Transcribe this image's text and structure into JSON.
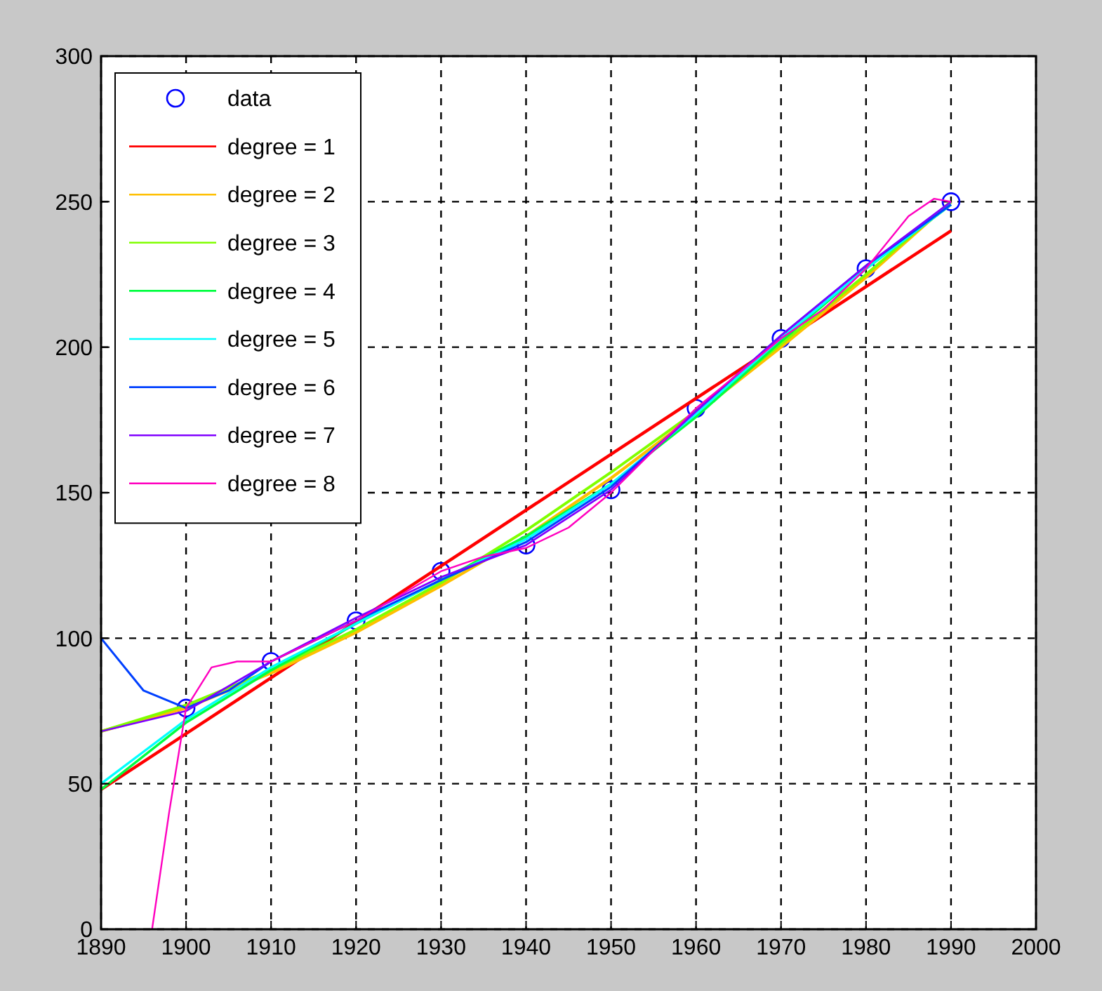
{
  "chart_data": {
    "type": "line",
    "xlim": [
      1890,
      2000
    ],
    "ylim": [
      0,
      300
    ],
    "xticks": [
      1890,
      1900,
      1910,
      1920,
      1930,
      1940,
      1950,
      1960,
      1970,
      1980,
      1990,
      2000
    ],
    "yticks": [
      0,
      50,
      100,
      150,
      200,
      250,
      300
    ],
    "grid": true,
    "legend": "top left",
    "series": [
      {
        "name": "data",
        "type": "scatter",
        "marker": "circle",
        "color": "#0000ff",
        "x": [
          1900,
          1910,
          1920,
          1930,
          1940,
          1950,
          1960,
          1970,
          1980,
          1990
        ],
        "values": [
          76,
          92,
          106,
          123,
          132,
          151,
          179,
          203,
          227,
          250
        ]
      },
      {
        "name": "degree = 1",
        "color": "#ff0000",
        "x": [
          1890,
          1990
        ],
        "values": [
          48,
          240
        ]
      },
      {
        "name": "degree = 2",
        "color": "#ffbf00",
        "x": [
          1890,
          1900,
          1910,
          1920,
          1930,
          1940,
          1950,
          1960,
          1970,
          1980,
          1990
        ],
        "values": [
          68,
          76,
          88,
          102,
          118,
          135,
          155,
          177,
          200,
          224,
          250
        ]
      },
      {
        "name": "degree = 3",
        "color": "#80ff00",
        "x": [
          1890,
          1900,
          1910,
          1920,
          1930,
          1940,
          1950,
          1960,
          1970,
          1980,
          1990
        ],
        "values": [
          68,
          77,
          89,
          103,
          119,
          137,
          157,
          178,
          201,
          225,
          250
        ]
      },
      {
        "name": "degree = 4",
        "color": "#00ff40",
        "x": [
          1890,
          1900,
          1910,
          1920,
          1930,
          1940,
          1950,
          1960,
          1970,
          1980,
          1990
        ],
        "values": [
          48,
          71,
          89,
          105,
          120,
          135,
          153,
          176,
          202,
          227,
          249
        ]
      },
      {
        "name": "degree = 5",
        "color": "#00ffff",
        "x": [
          1890,
          1900,
          1910,
          1920,
          1930,
          1940,
          1950,
          1960,
          1970,
          1980,
          1990
        ],
        "values": [
          50,
          72,
          90,
          105,
          120,
          134,
          153,
          177,
          203,
          227,
          249
        ]
      },
      {
        "name": "degree = 6",
        "color": "#0040ff",
        "x": [
          1890,
          1895,
          1900,
          1905,
          1910,
          1920,
          1930,
          1940,
          1950,
          1960,
          1970,
          1980,
          1990
        ],
        "values": [
          100,
          82,
          76,
          82,
          92,
          106,
          120,
          133,
          152,
          178,
          204,
          228,
          249
        ]
      },
      {
        "name": "degree = 7",
        "color": "#8000ff",
        "x": [
          1890,
          1900,
          1910,
          1920,
          1930,
          1940,
          1950,
          1960,
          1970,
          1980,
          1990
        ],
        "values": [
          68,
          75,
          92,
          107,
          121,
          132,
          151,
          178,
          204,
          228,
          250
        ]
      },
      {
        "name": "degree = 8",
        "color": "#ff00bf",
        "x": [
          1896,
          1898,
          1900,
          1903,
          1906,
          1910,
          1915,
          1920,
          1930,
          1935,
          1940,
          1945,
          1950,
          1960,
          1970,
          1975,
          1980,
          1985,
          1988,
          1990
        ],
        "values": [
          0,
          40,
          76,
          90,
          92,
          92,
          99,
          106,
          123,
          128,
          131,
          138,
          150,
          179,
          203,
          213,
          227,
          245,
          251,
          250
        ]
      }
    ]
  }
}
